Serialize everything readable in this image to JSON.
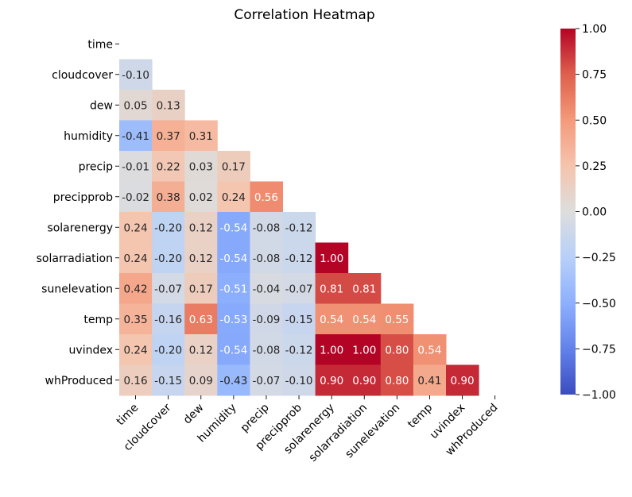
{
  "chart_data": {
    "type": "heatmap",
    "title": "Correlation Heatmap",
    "mask": "upper-triangle-and-diagonal",
    "colormap": "coolwarm",
    "labels": [
      "time",
      "cloudcover",
      "dew",
      "humidity",
      "precip",
      "precipprob",
      "solarenergy",
      "solarradiation",
      "sunelevation",
      "temp",
      "uvindex",
      "whProduced"
    ],
    "values": [
      [
        null,
        null,
        null,
        null,
        null,
        null,
        null,
        null,
        null,
        null,
        null,
        null
      ],
      [
        -0.1,
        null,
        null,
        null,
        null,
        null,
        null,
        null,
        null,
        null,
        null,
        null
      ],
      [
        0.05,
        0.13,
        null,
        null,
        null,
        null,
        null,
        null,
        null,
        null,
        null,
        null
      ],
      [
        -0.41,
        0.37,
        0.31,
        null,
        null,
        null,
        null,
        null,
        null,
        null,
        null,
        null
      ],
      [
        -0.01,
        0.22,
        0.03,
        0.17,
        null,
        null,
        null,
        null,
        null,
        null,
        null,
        null
      ],
      [
        -0.02,
        0.38,
        0.02,
        0.24,
        0.56,
        null,
        null,
        null,
        null,
        null,
        null,
        null
      ],
      [
        0.24,
        -0.2,
        0.12,
        -0.54,
        -0.08,
        -0.12,
        null,
        null,
        null,
        null,
        null,
        null
      ],
      [
        0.24,
        -0.2,
        0.12,
        -0.54,
        -0.08,
        -0.12,
        1.0,
        null,
        null,
        null,
        null,
        null
      ],
      [
        0.42,
        -0.07,
        0.17,
        -0.51,
        -0.04,
        -0.07,
        0.81,
        0.81,
        null,
        null,
        null,
        null
      ],
      [
        0.35,
        -0.16,
        0.63,
        -0.53,
        -0.09,
        -0.15,
        0.54,
        0.54,
        0.55,
        null,
        null,
        null
      ],
      [
        0.24,
        -0.2,
        0.12,
        -0.54,
        -0.08,
        -0.12,
        1.0,
        1.0,
        0.8,
        0.54,
        null,
        null
      ],
      [
        0.16,
        -0.15,
        0.09,
        -0.43,
        -0.07,
        -0.1,
        0.9,
        0.9,
        0.8,
        0.41,
        0.9,
        null
      ]
    ],
    "colorbar": {
      "range": [
        -1.0,
        1.0
      ],
      "ticks": [
        "1.00",
        "0.75",
        "0.50",
        "0.25",
        "0.00",
        "−0.25",
        "−0.50",
        "−0.75",
        "−1.00"
      ]
    },
    "number_format": "0.00"
  }
}
